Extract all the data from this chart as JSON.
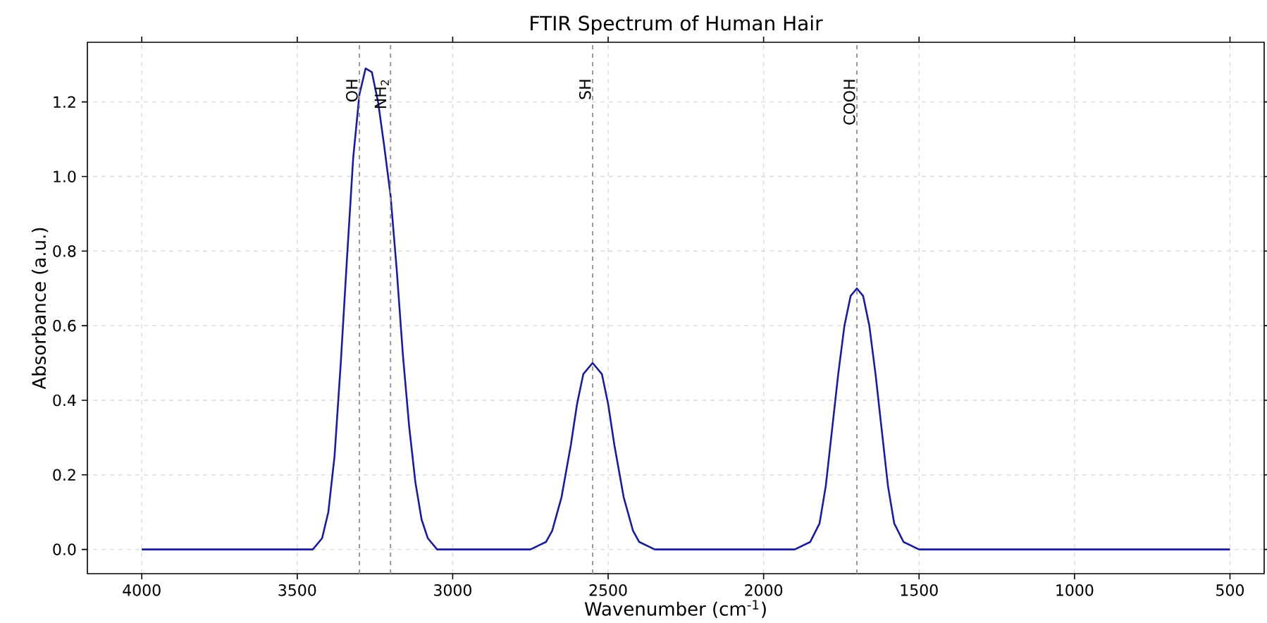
{
  "chart_data": {
    "type": "line",
    "title": "FTIR Spectrum of Human Hair",
    "xlabel": "Wavenumber (cm$^{-1}$)",
    "ylabel": "Absorbance (a.u.)",
    "x": [
      4000,
      3450,
      3420,
      3400,
      3380,
      3360,
      3340,
      3320,
      3300,
      3280,
      3260,
      3240,
      3220,
      3200,
      3180,
      3160,
      3140,
      3120,
      3100,
      3080,
      3050,
      2750,
      2700,
      2680,
      2650,
      2620,
      2600,
      2580,
      2550,
      2520,
      2500,
      2480,
      2450,
      2420,
      2400,
      2350,
      1900,
      1850,
      1820,
      1800,
      1780,
      1760,
      1740,
      1720,
      1700,
      1680,
      1660,
      1640,
      1620,
      1600,
      1580,
      1550,
      1500,
      500
    ],
    "series": [
      {
        "color": "#1c1c96",
        "values": [
          0,
          0,
          0.03,
          0.1,
          0.25,
          0.5,
          0.78,
          1.05,
          1.22,
          1.29,
          1.28,
          1.2,
          1.08,
          0.95,
          0.75,
          0.52,
          0.33,
          0.18,
          0.08,
          0.03,
          0,
          0,
          0.02,
          0.05,
          0.14,
          0.28,
          0.39,
          0.47,
          0.5,
          0.47,
          0.39,
          0.28,
          0.14,
          0.05,
          0.02,
          0,
          0,
          0.02,
          0.07,
          0.17,
          0.32,
          0.47,
          0.6,
          0.68,
          0.7,
          0.68,
          0.6,
          0.47,
          0.32,
          0.17,
          0.07,
          0.02,
          0,
          0
        ]
      }
    ],
    "xlim": [
      4175,
      390
    ],
    "ylim": [
      -0.065,
      1.36
    ],
    "xticks": [
      4000,
      3500,
      3000,
      2500,
      2000,
      1500,
      1000,
      500
    ],
    "yticks": [
      {
        "value": 0,
        "label": "0.0"
      },
      {
        "value": 0.2,
        "label": "0.2"
      },
      {
        "value": 0.4,
        "label": "0.4"
      },
      {
        "value": 0.6,
        "label": "0.6"
      },
      {
        "value": 0.8,
        "label": "0.8"
      },
      {
        "value": 1.0,
        "label": "1.0"
      },
      {
        "value": 1.2,
        "label": "1.2"
      }
    ],
    "grid": true,
    "line_style": "solid",
    "marker": "none",
    "ref_lines": [
      {
        "axis": "x",
        "value": 3300,
        "label": "OH",
        "color": "#999999",
        "line_style": "dashed"
      },
      {
        "axis": "x",
        "value": 3200,
        "label": "NH$_{2}$",
        "color": "#999999",
        "line_style": "dashed"
      },
      {
        "axis": "x",
        "value": 2550,
        "label": "SH",
        "color": "#999999",
        "line_style": "dashed"
      },
      {
        "axis": "x",
        "value": 1700,
        "label": "COOH",
        "color": "#999999",
        "line_style": "dashed"
      }
    ]
  }
}
